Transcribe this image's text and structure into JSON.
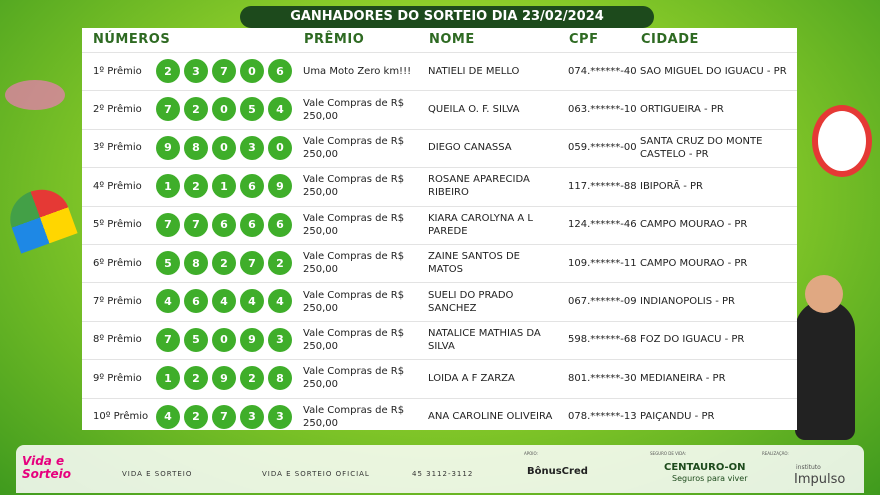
{
  "title": "GANHADORES DO SORTEIO DIA 23/02/2024",
  "table": {
    "headers": [
      "NÚMEROS",
      "PRÊMIO",
      "NOME",
      "CPF",
      "CIDADE"
    ],
    "rows": [
      {
        "prize_label": "1º Prêmio",
        "numbers": [
          2,
          3,
          7,
          0,
          6
        ],
        "prize": "Uma Moto Zero km!!!",
        "name": "NATIELI DE MELLO",
        "cpf": "074.******-40",
        "city": "SAO MIGUEL DO IGUACU - PR"
      },
      {
        "prize_label": "2º Prêmio",
        "numbers": [
          7,
          2,
          0,
          5,
          4
        ],
        "prize": "Vale Compras de R$ 250,00",
        "name": "QUEILA O. F. SILVA",
        "cpf": "063.******-10",
        "city": "ORTIGUEIRA - PR"
      },
      {
        "prize_label": "3º Prêmio",
        "numbers": [
          9,
          8,
          0,
          3,
          0
        ],
        "prize": "Vale Compras de R$ 250,00",
        "name": "DIEGO CANASSA",
        "cpf": "059.******-00",
        "city": "SANTA CRUZ DO MONTE CASTELO - PR"
      },
      {
        "prize_label": "4º Prêmio",
        "numbers": [
          1,
          2,
          1,
          6,
          9
        ],
        "prize": "Vale Compras de R$ 250,00",
        "name": "ROSANE APARECIDA RIBEIRO",
        "cpf": "117.******-88",
        "city": "IBIPORÃ - PR"
      },
      {
        "prize_label": "5º Prêmio",
        "numbers": [
          7,
          7,
          6,
          6,
          6
        ],
        "prize": "Vale Compras de R$ 250,00",
        "name": "KIARA CAROLYNA A L PAREDE",
        "cpf": "124.******-46",
        "city": "CAMPO MOURAO - PR"
      },
      {
        "prize_label": "6º Prêmio",
        "numbers": [
          5,
          8,
          2,
          7,
          2
        ],
        "prize": "Vale Compras de R$ 250,00",
        "name": "ZAINE SANTOS DE MATOS",
        "cpf": "109.******-11",
        "city": "CAMPO MOURAO - PR"
      },
      {
        "prize_label": "7º Prêmio",
        "numbers": [
          4,
          6,
          4,
          4,
          4
        ],
        "prize": "Vale Compras de R$ 250,00",
        "name": "SUELI DO PRADO SANCHEZ",
        "cpf": "067.******-09",
        "city": "INDIANOPOLIS - PR"
      },
      {
        "prize_label": "8º Prêmio",
        "numbers": [
          7,
          5,
          0,
          9,
          3
        ],
        "prize": "Vale Compras de R$ 250,00",
        "name": "NATALICE MATHIAS DA SILVA",
        "cpf": "598.******-68",
        "city": "FOZ DO IGUACU - PR"
      },
      {
        "prize_label": "9º Prêmio",
        "numbers": [
          1,
          2,
          9,
          2,
          8
        ],
        "prize": "Vale Compras de R$ 250,00",
        "name": "LOIDA A F ZARZA",
        "cpf": "801.******-30",
        "city": "MEDIANEIRA - PR"
      },
      {
        "prize_label": "10º Prêmio",
        "numbers": [
          4,
          2,
          7,
          3,
          3
        ],
        "prize": "Vale Compras de R$ 250,00",
        "name": "ANA CAROLINE OLIVEIRA",
        "cpf": "078.******-13",
        "city": "PAIÇANDU - PR"
      }
    ]
  },
  "footer": {
    "brand": "Vida e Sorteio",
    "social": "VIDA E SORTEIO",
    "instagram": "VIDA E SORTEIO OFICIAL",
    "phone": "45 3112-3112",
    "support_label": "APOIO:",
    "support": "BônusCred",
    "insurance_label": "SEGURO DE VIDA:",
    "insurance": "CENTAURO-ON",
    "insurance_tagline": "Seguros para viver",
    "organizer_label": "REALIZAÇÃO:",
    "organizer_small": "instituto",
    "organizer": "Impulso"
  }
}
